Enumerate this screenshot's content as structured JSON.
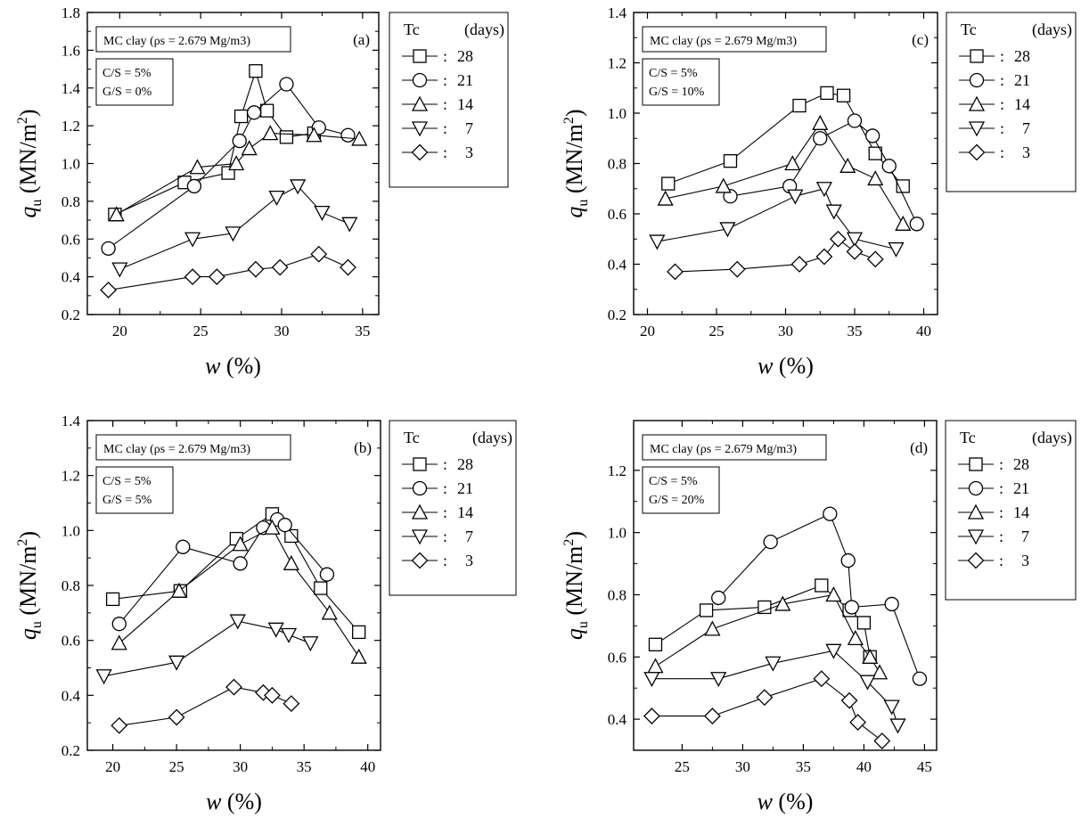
{
  "chart_data": [
    {
      "panel_label": "(a)",
      "type": "scatter",
      "xlabel": "w (%)",
      "ylabel": "qu (MN/m2)",
      "xlim": [
        18,
        36
      ],
      "ylim": [
        0.2,
        1.8
      ],
      "xticks": [
        20,
        25,
        30,
        35
      ],
      "yticks": [
        0.2,
        0.4,
        0.6,
        0.8,
        1.0,
        1.2,
        1.4,
        1.6,
        1.8
      ],
      "annotation_title": "MC clay (ρs = 2.679 Mg/m3)",
      "annotation_lines": [
        "C/S = 5%",
        "G/S = 0%"
      ],
      "legend_header": [
        "Tc",
        "(days)"
      ],
      "series": [
        {
          "name": "28",
          "marker": "square",
          "points": [
            [
              19.7,
              0.73
            ],
            [
              24.0,
              0.9
            ],
            [
              26.7,
              0.95
            ],
            [
              27.5,
              1.25
            ],
            [
              28.4,
              1.49
            ],
            [
              29.1,
              1.28
            ],
            [
              30.3,
              1.14
            ],
            [
              32.0,
              1.16
            ]
          ]
        },
        {
          "name": "21",
          "marker": "circle",
          "points": [
            [
              19.3,
              0.55
            ],
            [
              24.6,
              0.88
            ],
            [
              27.4,
              1.12
            ],
            [
              28.3,
              1.27
            ],
            [
              30.3,
              1.42
            ],
            [
              32.3,
              1.19
            ],
            [
              34.1,
              1.15
            ]
          ]
        },
        {
          "name": "14",
          "marker": "triangle-up",
          "points": [
            [
              19.8,
              0.73
            ],
            [
              24.8,
              0.98
            ],
            [
              27.2,
              1.0
            ],
            [
              28.0,
              1.08
            ],
            [
              29.3,
              1.16
            ],
            [
              32.0,
              1.15
            ],
            [
              34.8,
              1.13
            ]
          ]
        },
        {
          "name": "7",
          "marker": "triangle-down",
          "points": [
            [
              20.0,
              0.44
            ],
            [
              24.5,
              0.6
            ],
            [
              27.0,
              0.63
            ],
            [
              29.7,
              0.82
            ],
            [
              31.0,
              0.88
            ],
            [
              32.5,
              0.74
            ],
            [
              34.2,
              0.68
            ]
          ]
        },
        {
          "name": "3",
          "marker": "diamond",
          "points": [
            [
              19.3,
              0.33
            ],
            [
              24.5,
              0.4
            ],
            [
              26.0,
              0.4
            ],
            [
              28.4,
              0.44
            ],
            [
              29.9,
              0.45
            ],
            [
              32.3,
              0.52
            ],
            [
              34.1,
              0.45
            ]
          ]
        }
      ]
    },
    {
      "panel_label": "(c)",
      "type": "scatter",
      "xlabel": "w (%)",
      "ylabel": "qu (MN/m2)",
      "xlim": [
        19,
        41
      ],
      "ylim": [
        0.2,
        1.4
      ],
      "xticks": [
        20,
        25,
        30,
        35,
        40
      ],
      "yticks": [
        0.2,
        0.4,
        0.6,
        0.8,
        1.0,
        1.2,
        1.4
      ],
      "annotation_title": "MC clay (ρs = 2.679 Mg/m3)",
      "annotation_lines": [
        "C/S = 5%",
        "G/S = 10%"
      ],
      "legend_header": [
        "Tc",
        "(days)"
      ],
      "series": [
        {
          "name": "28",
          "marker": "square",
          "points": [
            [
              21.5,
              0.72
            ],
            [
              26.0,
              0.81
            ],
            [
              31.0,
              1.03
            ],
            [
              33.0,
              1.08
            ],
            [
              34.2,
              1.07
            ],
            [
              36.5,
              0.84
            ],
            [
              38.5,
              0.71
            ]
          ]
        },
        {
          "name": "21",
          "marker": "circle",
          "points": [
            [
              26.0,
              0.67
            ],
            [
              30.3,
              0.71
            ],
            [
              32.5,
              0.9
            ],
            [
              35.0,
              0.97
            ],
            [
              36.3,
              0.91
            ],
            [
              37.5,
              0.79
            ],
            [
              39.5,
              0.56
            ]
          ]
        },
        {
          "name": "14",
          "marker": "triangle-up",
          "points": [
            [
              21.3,
              0.66
            ],
            [
              25.5,
              0.71
            ],
            [
              30.5,
              0.8
            ],
            [
              32.5,
              0.96
            ],
            [
              34.5,
              0.79
            ],
            [
              36.5,
              0.74
            ],
            [
              38.5,
              0.56
            ]
          ]
        },
        {
          "name": "7",
          "marker": "triangle-down",
          "points": [
            [
              20.7,
              0.49
            ],
            [
              25.8,
              0.54
            ],
            [
              30.7,
              0.67
            ],
            [
              32.8,
              0.7
            ],
            [
              33.5,
              0.61
            ],
            [
              35.0,
              0.5
            ],
            [
              38.0,
              0.46
            ]
          ]
        },
        {
          "name": "3",
          "marker": "diamond",
          "points": [
            [
              22.0,
              0.37
            ],
            [
              26.5,
              0.38
            ],
            [
              31.0,
              0.4
            ],
            [
              32.8,
              0.43
            ],
            [
              33.8,
              0.5
            ],
            [
              35.0,
              0.45
            ],
            [
              36.5,
              0.42
            ]
          ]
        }
      ]
    },
    {
      "panel_label": "(b)",
      "type": "scatter",
      "xlabel": "w (%)",
      "ylabel": "qu (MN/m2)",
      "xlim": [
        18,
        41
      ],
      "ylim": [
        0.2,
        1.4
      ],
      "xticks": [
        20,
        25,
        30,
        35,
        40
      ],
      "yticks": [
        0.2,
        0.4,
        0.6,
        0.8,
        1.0,
        1.2,
        1.4
      ],
      "annotation_title": "MC clay (ρs = 2.679 Mg/m3)",
      "annotation_lines": [
        "C/S = 5%",
        "G/S = 5%"
      ],
      "legend_header": [
        "Tc",
        "(days)"
      ],
      "series": [
        {
          "name": "28",
          "marker": "square",
          "points": [
            [
              20.0,
              0.75
            ],
            [
              25.3,
              0.78
            ],
            [
              29.7,
              0.97
            ],
            [
              32.5,
              1.06
            ],
            [
              34.0,
              0.98
            ],
            [
              36.3,
              0.79
            ],
            [
              39.3,
              0.63
            ]
          ]
        },
        {
          "name": "21",
          "marker": "circle",
          "points": [
            [
              20.5,
              0.66
            ],
            [
              25.5,
              0.94
            ],
            [
              30.0,
              0.88
            ],
            [
              31.8,
              1.01
            ],
            [
              32.9,
              1.04
            ],
            [
              33.5,
              1.02
            ],
            [
              36.8,
              0.84
            ]
          ]
        },
        {
          "name": "14",
          "marker": "triangle-up",
          "points": [
            [
              20.5,
              0.59
            ],
            [
              25.2,
              0.78
            ],
            [
              30.0,
              0.95
            ],
            [
              32.5,
              1.01
            ],
            [
              34.0,
              0.88
            ],
            [
              37.0,
              0.7
            ],
            [
              39.3,
              0.54
            ]
          ]
        },
        {
          "name": "7",
          "marker": "triangle-down",
          "points": [
            [
              19.3,
              0.47
            ],
            [
              25.0,
              0.52
            ],
            [
              29.8,
              0.67
            ],
            [
              32.8,
              0.64
            ],
            [
              33.8,
              0.62
            ],
            [
              35.5,
              0.59
            ]
          ]
        },
        {
          "name": "3",
          "marker": "diamond",
          "points": [
            [
              20.5,
              0.29
            ],
            [
              25.0,
              0.32
            ],
            [
              29.5,
              0.43
            ],
            [
              31.8,
              0.41
            ],
            [
              32.5,
              0.4
            ],
            [
              34.0,
              0.37
            ]
          ]
        }
      ]
    },
    {
      "panel_label": "(d)",
      "type": "scatter",
      "xlabel": "w (%)",
      "ylabel": "qu (MN/m2)",
      "xlim": [
        21,
        46
      ],
      "ylim": [
        0.3,
        1.36
      ],
      "xticks": [
        25,
        30,
        35,
        40,
        45
      ],
      "yticks": [
        0.4,
        0.6,
        0.8,
        1.0,
        1.2
      ],
      "annotation_title": "MC clay (ρs = 2.679 Mg/m3)",
      "annotation_lines": [
        "C/S = 5%",
        "G/S = 20%"
      ],
      "legend_header": [
        "Tc",
        "(days)"
      ],
      "series": [
        {
          "name": "28",
          "marker": "square",
          "points": [
            [
              22.8,
              0.64
            ],
            [
              27.0,
              0.75
            ],
            [
              31.8,
              0.76
            ],
            [
              36.5,
              0.83
            ],
            [
              38.8,
              0.75
            ],
            [
              40.0,
              0.71
            ],
            [
              40.5,
              0.6
            ]
          ]
        },
        {
          "name": "21",
          "marker": "circle",
          "points": [
            [
              28.0,
              0.79
            ],
            [
              32.3,
              0.97
            ],
            [
              37.2,
              1.06
            ],
            [
              38.7,
              0.91
            ],
            [
              39.0,
              0.76
            ],
            [
              42.3,
              0.77
            ],
            [
              44.6,
              0.53
            ]
          ]
        },
        {
          "name": "14",
          "marker": "triangle-up",
          "points": [
            [
              22.8,
              0.57
            ],
            [
              27.5,
              0.69
            ],
            [
              33.3,
              0.77
            ],
            [
              37.5,
              0.8
            ],
            [
              39.3,
              0.66
            ],
            [
              40.5,
              0.6
            ],
            [
              41.3,
              0.55
            ]
          ]
        },
        {
          "name": "7",
          "marker": "triangle-down",
          "points": [
            [
              22.5,
              0.53
            ],
            [
              28.0,
              0.53
            ],
            [
              32.5,
              0.58
            ],
            [
              37.5,
              0.62
            ],
            [
              40.3,
              0.52
            ],
            [
              42.3,
              0.44
            ],
            [
              42.8,
              0.38
            ]
          ]
        },
        {
          "name": "3",
          "marker": "diamond",
          "points": [
            [
              22.5,
              0.41
            ],
            [
              27.5,
              0.41
            ],
            [
              31.8,
              0.47
            ],
            [
              36.5,
              0.53
            ],
            [
              38.8,
              0.46
            ],
            [
              39.5,
              0.39
            ],
            [
              41.5,
              0.33
            ]
          ]
        }
      ]
    }
  ]
}
